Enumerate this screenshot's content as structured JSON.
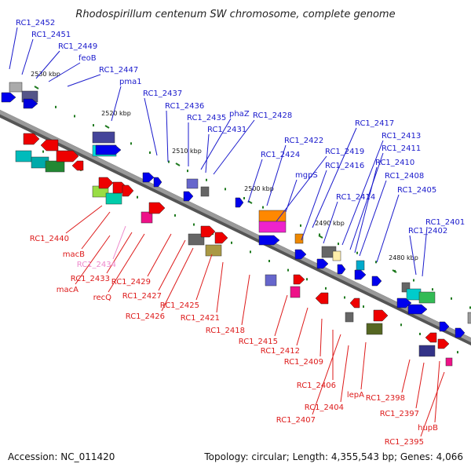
{
  "title": "Rhodospirillum centenum SW chromosome, complete genome",
  "footer": {
    "accession": "Accession: NC_011420",
    "summary": "Topology: circular; Length: 4,355,543 bp; Genes: 4,066"
  },
  "colors": {
    "forward_label": "#1a1acc",
    "reverse_label": "#dd1a1a",
    "highlight_label": "#ee88cc",
    "backbone": "#888888",
    "tick": "#1f7a1f"
  },
  "ticks": [
    "2530 kbp",
    "2520 kbp",
    "2510 kbp",
    "2500 kbp",
    "2490 kbp",
    "2480 kbp"
  ],
  "forward_genes": [
    "RC1_2452",
    "RC1_2451",
    "RC1_2449",
    "feoB",
    "RC1_2447",
    "pma1",
    "RC1_2437",
    "RC1_2436",
    "RC1_2435",
    "phaZ",
    "RC1_2431",
    "RC1_2428",
    "RC1_2424",
    "RC1_2422",
    "mgpS",
    "RC1_2419",
    "RC1_2417",
    "RC1_2416",
    "RC1_2414",
    "RC1_2413",
    "RC1_2411",
    "RC1_2410",
    "RC1_2408",
    "RC1_2405",
    "RC1_2402",
    "RC1_2401"
  ],
  "reverse_genes": [
    "RC1_2440",
    "macB",
    "RC1_2434",
    "RC1_2433",
    "macA",
    "recQ",
    "RC1_2429",
    "RC1_2427",
    "RC1_2426",
    "RC1_2425",
    "RC1_2421",
    "RC1_2418",
    "RC1_2415",
    "RC1_2412",
    "RC1_2409",
    "RC1_2406",
    "RC1_2407",
    "RC1_2404",
    "lepA",
    "RC1_2398",
    "RC1_2397",
    "hupB",
    "RC1_2395"
  ]
}
